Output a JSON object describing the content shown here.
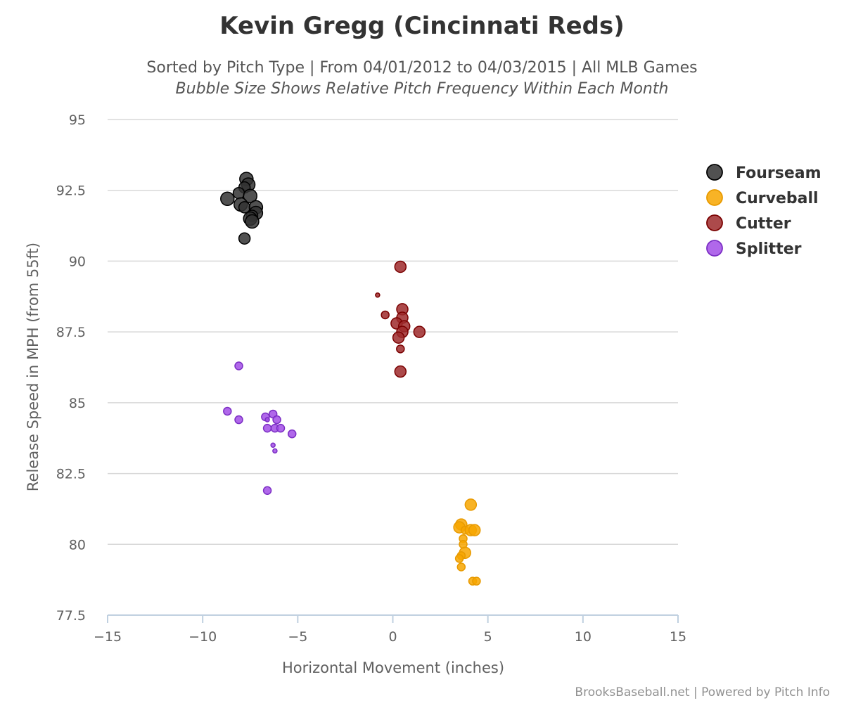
{
  "chart_data": {
    "type": "scatter",
    "title": "Kevin Gregg (Cincinnati Reds)",
    "subtitle": "Sorted by Pitch Type | From 04/01/2012 to 04/03/2015 | All MLB Games",
    "subtitle2": "Bubble Size Shows Relative Pitch Frequency Within Each Month",
    "xlabel": "Horizontal Movement (inches)",
    "ylabel": "Release Speed in MPH (from 55ft)",
    "xlim": [
      -15,
      15
    ],
    "ylim": [
      77.5,
      95
    ],
    "xticks": [
      -15,
      -10,
      -5,
      0,
      5,
      10,
      15
    ],
    "xtick_labels": [
      "−15",
      "−10",
      "−5",
      "0",
      "5",
      "10",
      "15"
    ],
    "yticks": [
      77.5,
      80,
      82.5,
      85,
      87.5,
      90,
      92.5,
      95
    ],
    "ytick_labels": [
      "77.5",
      "80",
      "82.5",
      "85",
      "87.5",
      "90",
      "92.5",
      "95"
    ],
    "grid": true,
    "legend_position": "right",
    "credit": "BrooksBaseball.net | Powered by Pitch Info",
    "series": [
      {
        "name": "Fourseam",
        "color": "#333333",
        "border": "#000000",
        "points": [
          {
            "x": -7.7,
            "y": 92.9,
            "s": 3
          },
          {
            "x": -7.6,
            "y": 92.7,
            "s": 3
          },
          {
            "x": -7.8,
            "y": 92.6,
            "s": 2
          },
          {
            "x": -8.7,
            "y": 92.2,
            "s": 3
          },
          {
            "x": -8.1,
            "y": 92.4,
            "s": 2
          },
          {
            "x": -7.5,
            "y": 92.3,
            "s": 3
          },
          {
            "x": -8.0,
            "y": 92.0,
            "s": 3
          },
          {
            "x": -7.8,
            "y": 91.9,
            "s": 2
          },
          {
            "x": -7.2,
            "y": 91.9,
            "s": 3
          },
          {
            "x": -7.2,
            "y": 91.7,
            "s": 3
          },
          {
            "x": -7.4,
            "y": 91.6,
            "s": 2
          },
          {
            "x": -7.5,
            "y": 91.5,
            "s": 3
          },
          {
            "x": -7.4,
            "y": 91.4,
            "s": 3
          },
          {
            "x": -7.8,
            "y": 90.8,
            "s": 2
          }
        ]
      },
      {
        "name": "Curveball",
        "color": "#f7a600",
        "border": "#e89a00",
        "points": [
          {
            "x": 4.1,
            "y": 81.4,
            "s": 2
          },
          {
            "x": 3.6,
            "y": 80.7,
            "s": 2
          },
          {
            "x": 3.5,
            "y": 80.6,
            "s": 2
          },
          {
            "x": 3.8,
            "y": 80.5,
            "s": 1
          },
          {
            "x": 4.1,
            "y": 80.5,
            "s": 2
          },
          {
            "x": 4.3,
            "y": 80.5,
            "s": 2
          },
          {
            "x": 3.7,
            "y": 80.2,
            "s": 1
          },
          {
            "x": 3.7,
            "y": 80.0,
            "s": 1
          },
          {
            "x": 3.8,
            "y": 79.7,
            "s": 2
          },
          {
            "x": 3.6,
            "y": 79.6,
            "s": 1
          },
          {
            "x": 3.5,
            "y": 79.5,
            "s": 1
          },
          {
            "x": 3.6,
            "y": 79.2,
            "s": 1
          },
          {
            "x": 4.2,
            "y": 78.7,
            "s": 1
          },
          {
            "x": 4.4,
            "y": 78.7,
            "s": 1
          }
        ]
      },
      {
        "name": "Cutter",
        "color": "#9e2a2b",
        "border": "#7a0000",
        "points": [
          {
            "x": 0.4,
            "y": 89.8,
            "s": 2
          },
          {
            "x": -0.8,
            "y": 88.8,
            "s": 0
          },
          {
            "x": -0.4,
            "y": 88.1,
            "s": 1
          },
          {
            "x": 0.5,
            "y": 88.3,
            "s": 2
          },
          {
            "x": 0.5,
            "y": 88.0,
            "s": 2
          },
          {
            "x": 0.2,
            "y": 87.8,
            "s": 2
          },
          {
            "x": 0.6,
            "y": 87.7,
            "s": 2
          },
          {
            "x": 0.5,
            "y": 87.5,
            "s": 2
          },
          {
            "x": 1.4,
            "y": 87.5,
            "s": 2
          },
          {
            "x": 0.3,
            "y": 87.3,
            "s": 2
          },
          {
            "x": 0.4,
            "y": 86.9,
            "s": 1
          },
          {
            "x": 0.4,
            "y": 86.1,
            "s": 2
          }
        ]
      },
      {
        "name": "Splitter",
        "color": "#a24ee6",
        "border": "#7b2ec4",
        "points": [
          {
            "x": -8.1,
            "y": 86.3,
            "s": 1
          },
          {
            "x": -8.7,
            "y": 84.7,
            "s": 1
          },
          {
            "x": -8.1,
            "y": 84.4,
            "s": 1
          },
          {
            "x": -6.7,
            "y": 84.5,
            "s": 1
          },
          {
            "x": -6.6,
            "y": 84.4,
            "s": 0
          },
          {
            "x": -6.3,
            "y": 84.6,
            "s": 1
          },
          {
            "x": -6.1,
            "y": 84.4,
            "s": 1
          },
          {
            "x": -6.2,
            "y": 84.1,
            "s": 1
          },
          {
            "x": -6.6,
            "y": 84.1,
            "s": 1
          },
          {
            "x": -5.9,
            "y": 84.1,
            "s": 1
          },
          {
            "x": -5.3,
            "y": 83.9,
            "s": 1
          },
          {
            "x": -6.3,
            "y": 83.5,
            "s": 0
          },
          {
            "x": -6.2,
            "y": 83.3,
            "s": 0
          },
          {
            "x": -6.6,
            "y": 81.9,
            "s": 1
          }
        ]
      }
    ]
  }
}
